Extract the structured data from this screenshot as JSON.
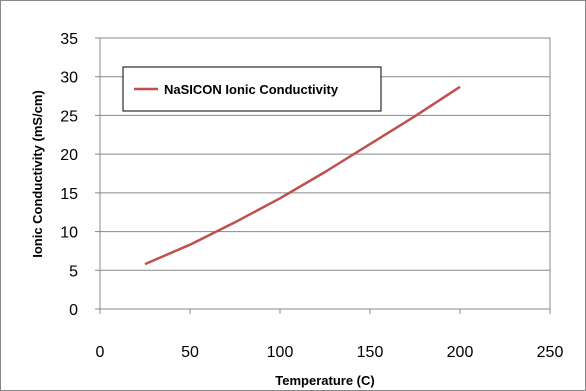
{
  "chart_data": {
    "type": "line",
    "title": "",
    "xlabel": "Temperature (C)",
    "ylabel": "Ionic Conductivity  (mS/cm)",
    "xlim": [
      0,
      250
    ],
    "ylim": [
      0,
      35
    ],
    "xticks": [
      0,
      50,
      100,
      150,
      200,
      250
    ],
    "yticks": [
      0,
      5,
      10,
      15,
      20,
      25,
      30,
      35
    ],
    "grid": "horizontal",
    "legend_position": "top-left",
    "series": [
      {
        "name": "NaSICON Ionic Conductivity",
        "color": "#C0504D",
        "x": [
          25,
          50,
          75,
          100,
          125,
          150,
          175,
          200
        ],
        "y": [
          5.8,
          8.3,
          11.2,
          14.3,
          17.7,
          21.3,
          24.9,
          28.7
        ]
      }
    ]
  }
}
